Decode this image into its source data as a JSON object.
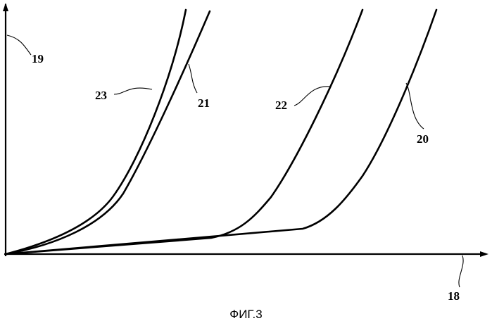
{
  "caption": "ФИГ.3",
  "labels": {
    "y_axis": "19",
    "x_axis": "18",
    "curve_20": "20",
    "curve_21": "21",
    "curve_22": "22",
    "curve_23": "23"
  },
  "colors": {
    "line": "#000000",
    "background": "#ffffff"
  }
}
